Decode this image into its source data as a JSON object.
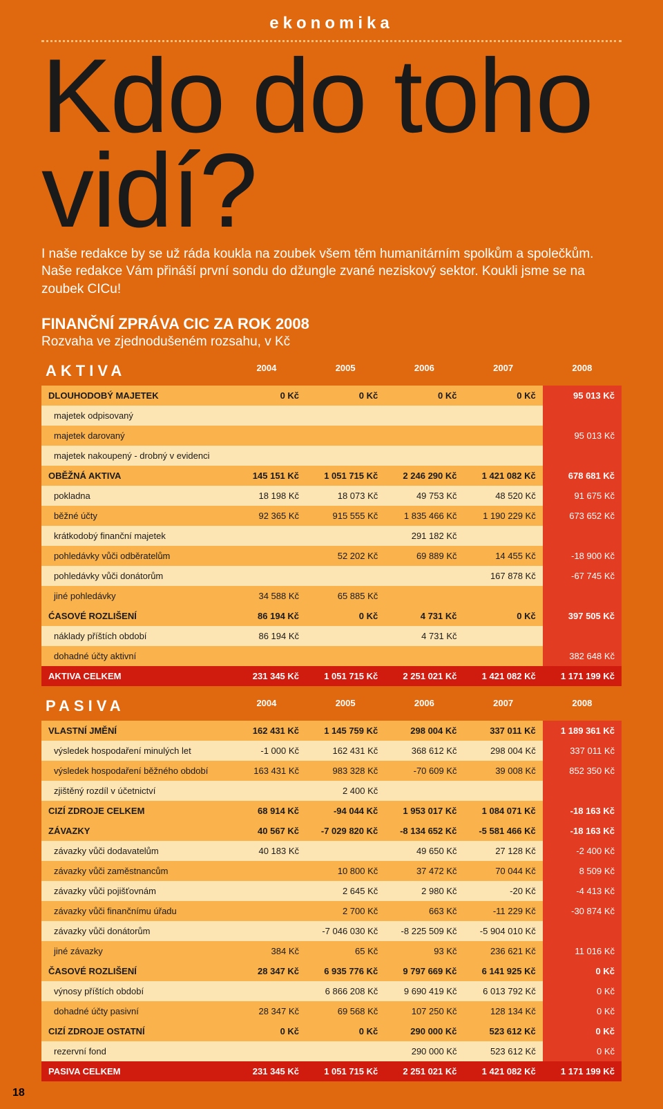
{
  "header": {
    "section": "ekonomika",
    "title": "Kdo do toho vidí?",
    "intro": "I naše redakce by se už ráda koukla na zoubek všem těm humanitárním spolkům a společkům. Naše redakce Vám přináší první sondu do džungle zvané neziskový sektor. Koukli jsme se na zoubek CICu!"
  },
  "report": {
    "title": "FINANČNÍ ZPRÁVA CIC ZA ROK 2008",
    "subtitle": "Rozvaha ve zjednodušeném rozsahu, v Kč"
  },
  "years": [
    "2004",
    "2005",
    "2006",
    "2007",
    "2008"
  ],
  "style": {
    "page_bg": "#e0690f",
    "shade_light": "#fde4b3",
    "shade_med": "#f9b24c",
    "last_col_bg": "#e23c22",
    "total_bg": "#d01b0f",
    "text_dark": "#1a1a1a",
    "text_white": "#ffffff",
    "font_size_table": 13,
    "font_size_intro": 19,
    "font_size_title": 152
  },
  "aktiva": {
    "heading": "AKTIVA",
    "rows": [
      {
        "label": "DLOUHODOBÝ MAJETEK",
        "v": [
          "0 Kč",
          "0 Kč",
          "0 Kč",
          "0 Kč",
          "95 013 Kč"
        ],
        "type": "bold",
        "shade": "med"
      },
      {
        "label": "majetek odpisovaný",
        "v": [
          "",
          "",
          "",
          "",
          ""
        ],
        "shade": "light"
      },
      {
        "label": "majetek darovaný",
        "v": [
          "",
          "",
          "",
          "",
          "95 013 Kč"
        ],
        "shade": "med"
      },
      {
        "label": "majetek nakoupený - drobný v evidenci",
        "v": [
          "",
          "",
          "",
          "",
          ""
        ],
        "shade": "light"
      },
      {
        "label": "OBĚŽNÁ AKTIVA",
        "v": [
          "145 151 Kč",
          "1 051 715 Kč",
          "2 246 290 Kč",
          "1 421 082 Kč",
          "678 681 Kč"
        ],
        "type": "bold",
        "shade": "med"
      },
      {
        "label": "pokladna",
        "v": [
          "18 198 Kč",
          "18 073 Kč",
          "49 753 Kč",
          "48 520 Kč",
          "91 675 Kč"
        ],
        "shade": "light"
      },
      {
        "label": "běžné účty",
        "v": [
          "92 365 Kč",
          "915 555 Kč",
          "1 835 466 Kč",
          "1 190 229 Kč",
          "673 652 Kč"
        ],
        "shade": "med"
      },
      {
        "label": "krátkodobý finanční majetek",
        "v": [
          "",
          "",
          "291 182 Kč",
          "",
          ""
        ],
        "shade": "light"
      },
      {
        "label": "pohledávky vůči odběratelům",
        "v": [
          "",
          "52 202 Kč",
          "69 889 Kč",
          "14 455 Kč",
          "-18 900 Kč"
        ],
        "shade": "med"
      },
      {
        "label": "pohledávky vůči donátorům",
        "v": [
          "",
          "",
          "",
          "167 878 Kč",
          "-67 745 Kč"
        ],
        "shade": "light"
      },
      {
        "label": "jiné pohledávky",
        "v": [
          "34 588 Kč",
          "65 885 Kč",
          "",
          "",
          ""
        ],
        "shade": "med"
      },
      {
        "label": "ĆASOVÉ ROZLIŠENÍ",
        "v": [
          "86 194 Kč",
          "0 Kč",
          "4 731 Kč",
          "0 Kč",
          "397 505 Kč"
        ],
        "type": "bold",
        "shade": "med"
      },
      {
        "label": "náklady příštích období",
        "v": [
          "86 194 Kč",
          "",
          "4 731 Kč",
          "",
          ""
        ],
        "shade": "light"
      },
      {
        "label": "dohadné účty aktivní",
        "v": [
          "",
          "",
          "",
          "",
          "382 648 Kč"
        ],
        "shade": "med"
      },
      {
        "label": "AKTIVA CELKEM",
        "v": [
          "231 345 Kč",
          "1 051 715 Kč",
          "2 251 021 Kč",
          "1 421 082 Kč",
          "1 171 199 Kč"
        ],
        "type": "total"
      }
    ]
  },
  "pasiva": {
    "heading": "PASIVA",
    "rows": [
      {
        "label": "VLASTNÍ JMĚNÍ",
        "v": [
          "162 431 Kč",
          "1 145 759 Kč",
          "298 004 Kč",
          "337 011 Kč",
          "1 189 361 Kč"
        ],
        "type": "bold",
        "shade": "med"
      },
      {
        "label": "výsledek hospodaření minulých let",
        "v": [
          "-1 000 Kč",
          "162 431 Kč",
          "368 612 Kč",
          "298 004 Kč",
          "337 011 Kč"
        ],
        "shade": "light"
      },
      {
        "label": "výsledek hospodaření běžného období",
        "v": [
          "163 431 Kč",
          "983 328 Kč",
          "-70 609 Kč",
          "39 008 Kč",
          "852 350 Kč"
        ],
        "shade": "med"
      },
      {
        "label": "zjištěný rozdíl v účetnictví",
        "v": [
          "",
          "2 400 Kč",
          "",
          "",
          ""
        ],
        "shade": "light"
      },
      {
        "label": "CIZÍ ZDROJE CELKEM",
        "v": [
          "68 914 Kč",
          "-94 044 Kč",
          "1 953 017 Kč",
          "1 084 071 Kč",
          "-18 163 Kč"
        ],
        "type": "bold",
        "shade": "med"
      },
      {
        "label": "ZÁVAZKY",
        "v": [
          "40 567 Kč",
          "-7 029 820 Kč",
          "-8 134 652 Kč",
          "-5 581 466 Kč",
          "-18 163 Kč"
        ],
        "type": "bold",
        "shade": "med"
      },
      {
        "label": "závazky vůči dodavatelům",
        "v": [
          "40 183 Kč",
          "",
          "49 650 Kč",
          "27 128 Kč",
          "-2 400 Kč"
        ],
        "shade": "light"
      },
      {
        "label": "závazky vůči zaměstnancům",
        "v": [
          "",
          "10 800 Kč",
          "37 472 Kč",
          "70 044 Kč",
          "8 509 Kč"
        ],
        "shade": "med"
      },
      {
        "label": "závazky vůči pojišťovnám",
        "v": [
          "",
          "2 645 Kč",
          "2 980 Kč",
          "-20 Kč",
          "-4 413 Kč"
        ],
        "shade": "light"
      },
      {
        "label": "závazky vůči finančnímu úřadu",
        "v": [
          "",
          "2 700 Kč",
          "663 Kč",
          "-11 229 Kč",
          "-30 874 Kč"
        ],
        "shade": "med"
      },
      {
        "label": "závazky vůči donátorům",
        "v": [
          "",
          "-7 046 030 Kč",
          "-8 225 509 Kč",
          "-5 904 010 Kč",
          ""
        ],
        "shade": "light"
      },
      {
        "label": "jiné závazky",
        "v": [
          "384 Kč",
          "65 Kč",
          "93 Kč",
          "236 621 Kč",
          "11 016 Kč"
        ],
        "shade": "med"
      },
      {
        "label": "ČASOVÉ ROZLIŠENÍ",
        "v": [
          "28 347 Kč",
          "6 935 776 Kč",
          "9 797 669 Kč",
          "6 141 925 Kč",
          "0 Kč"
        ],
        "type": "bold",
        "shade": "med"
      },
      {
        "label": "výnosy příštích období",
        "v": [
          "",
          "6 866 208 Kč",
          "9 690 419 Kč",
          "6 013 792 Kč",
          "0 Kč"
        ],
        "shade": "light"
      },
      {
        "label": "dohadné účty pasivní",
        "v": [
          "28 347 Kč",
          "69 568 Kč",
          "107 250 Kč",
          "128 134 Kč",
          "0 Kč"
        ],
        "shade": "med"
      },
      {
        "label": "CIZÍ ZDROJE OSTATNÍ",
        "v": [
          "0 Kč",
          "0 Kč",
          "290 000 Kč",
          "523 612 Kč",
          "0 Kč"
        ],
        "type": "bold",
        "shade": "med"
      },
      {
        "label": "rezervní fond",
        "v": [
          "",
          "",
          "290 000 Kč",
          "523 612 Kč",
          "0 Kč"
        ],
        "shade": "light"
      },
      {
        "label": "PASIVA CELKEM",
        "v": [
          "231 345 Kč",
          "1 051 715 Kč",
          "2 251 021 Kč",
          "1 421 082 Kč",
          "1 171 199 Kč"
        ],
        "type": "total"
      }
    ]
  },
  "footer": {
    "page": "18"
  }
}
